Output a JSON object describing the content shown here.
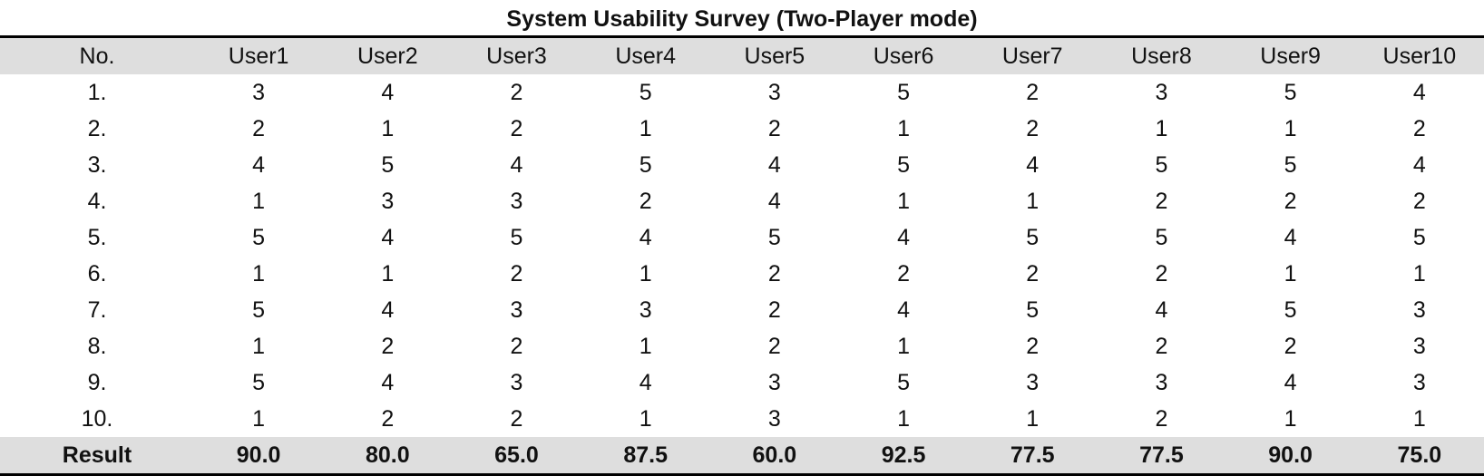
{
  "title": "System Usability Survey (Two-Player mode)",
  "table": {
    "columns": [
      "No.",
      "User1",
      "User2",
      "User3",
      "User4",
      "User5",
      "User6",
      "User7",
      "User8",
      "User9",
      "User10"
    ],
    "rows": [
      [
        "1.",
        "3",
        "4",
        "2",
        "5",
        "3",
        "5",
        "2",
        "3",
        "5",
        "4"
      ],
      [
        "2.",
        "2",
        "1",
        "2",
        "1",
        "2",
        "1",
        "2",
        "1",
        "1",
        "2"
      ],
      [
        "3.",
        "4",
        "5",
        "4",
        "5",
        "4",
        "5",
        "4",
        "5",
        "5",
        "4"
      ],
      [
        "4.",
        "1",
        "3",
        "3",
        "2",
        "4",
        "1",
        "1",
        "2",
        "2",
        "2"
      ],
      [
        "5.",
        "5",
        "4",
        "5",
        "4",
        "5",
        "4",
        "5",
        "5",
        "4",
        "5"
      ],
      [
        "6.",
        "1",
        "1",
        "2",
        "1",
        "2",
        "2",
        "2",
        "2",
        "1",
        "1"
      ],
      [
        "7.",
        "5",
        "4",
        "3",
        "3",
        "2",
        "4",
        "5",
        "4",
        "5",
        "3"
      ],
      [
        "8.",
        "1",
        "2",
        "2",
        "1",
        "2",
        "1",
        "2",
        "2",
        "2",
        "3"
      ],
      [
        "9.",
        "5",
        "4",
        "3",
        "4",
        "3",
        "5",
        "3",
        "3",
        "4",
        "3"
      ],
      [
        "10.",
        "1",
        "2",
        "2",
        "1",
        "3",
        "1",
        "1",
        "2",
        "1",
        "1"
      ]
    ],
    "result": [
      "Result",
      "90.0",
      "80.0",
      "65.0",
      "87.5",
      "60.0",
      "92.5",
      "77.5",
      "77.5",
      "90.0",
      "75.0"
    ]
  }
}
